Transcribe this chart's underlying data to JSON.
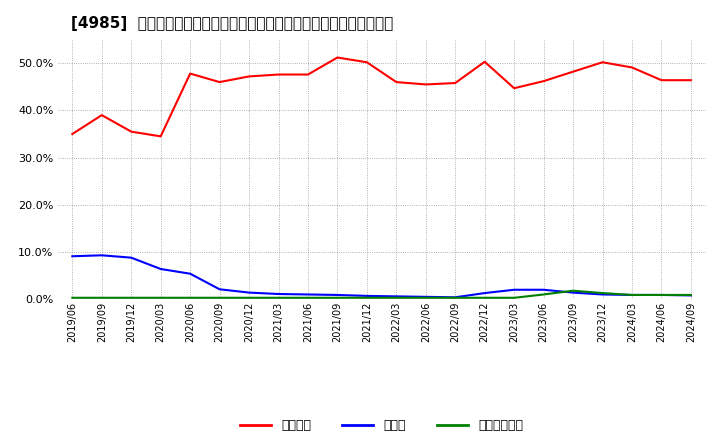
{
  "title": "[4985]  自己資本、のれん、繰延税金資産の総資産に対する比率の推移",
  "x_labels": [
    "2019/06",
    "2019/09",
    "2019/12",
    "2020/03",
    "2020/06",
    "2020/09",
    "2020/12",
    "2021/03",
    "2021/06",
    "2021/09",
    "2021/12",
    "2022/03",
    "2022/06",
    "2022/09",
    "2022/12",
    "2023/03",
    "2023/06",
    "2023/09",
    "2023/12",
    "2024/03",
    "2024/06",
    "2024/09"
  ],
  "equity": [
    0.35,
    0.39,
    0.355,
    0.345,
    0.478,
    0.46,
    0.472,
    0.476,
    0.476,
    0.512,
    0.502,
    0.46,
    0.455,
    0.458,
    0.503,
    0.447,
    0.462,
    0.482,
    0.502,
    0.491,
    0.464,
    0.464
  ],
  "goodwill": [
    0.091,
    0.093,
    0.088,
    0.064,
    0.054,
    0.021,
    0.014,
    0.011,
    0.01,
    0.009,
    0.007,
    0.006,
    0.005,
    0.004,
    0.013,
    0.02,
    0.02,
    0.014,
    0.01,
    0.009,
    0.009,
    0.008
  ],
  "deferred_tax": [
    0.003,
    0.003,
    0.003,
    0.003,
    0.003,
    0.003,
    0.003,
    0.003,
    0.003,
    0.003,
    0.003,
    0.003,
    0.003,
    0.003,
    0.003,
    0.003,
    0.01,
    0.018,
    0.013,
    0.009,
    0.009,
    0.009
  ],
  "equity_color": "#ff0000",
  "goodwill_color": "#0000ff",
  "deferred_tax_color": "#008000",
  "background_color": "#ffffff",
  "plot_bg_color": "#ffffff",
  "grid_color": "#999999",
  "title_fontsize": 11,
  "legend_labels": [
    "自己資本",
    "のれん",
    "繰延税金資産"
  ],
  "ylim": [
    0.0,
    0.55
  ],
  "yticks": [
    0.0,
    0.1,
    0.2,
    0.3,
    0.4,
    0.5
  ]
}
